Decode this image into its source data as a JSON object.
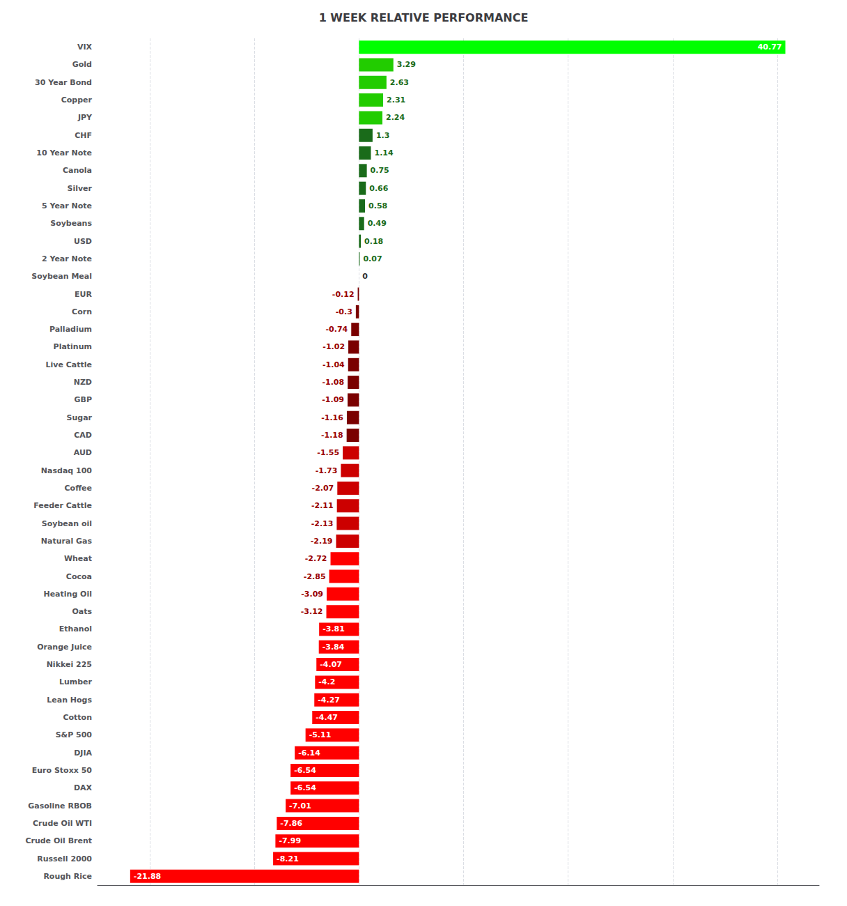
{
  "chart_data": {
    "type": "bar",
    "orientation": "horizontal",
    "title": "1 WEEK RELATIVE PERFORMANCE",
    "categories": [
      "VIX",
      "Gold",
      "30 Year Bond",
      "Copper",
      "JPY",
      "CHF",
      "10 Year Note",
      "Canola",
      "Silver",
      "5 Year Note",
      "Soybeans",
      "USD",
      "2 Year Note",
      "Soybean Meal",
      "EUR",
      "Corn",
      "Palladium",
      "Platinum",
      "Live Cattle",
      "NZD",
      "GBP",
      "Sugar",
      "CAD",
      "AUD",
      "Nasdaq 100",
      "Coffee",
      "Feeder Cattle",
      "Soybean oil",
      "Natural Gas",
      "Wheat",
      "Cocoa",
      "Heating Oil",
      "Oats",
      "Ethanol",
      "Orange Juice",
      "Nikkei 225",
      "Lumber",
      "Lean Hogs",
      "Cotton",
      "S&P 500",
      "DJIA",
      "Euro Stoxx 50",
      "DAX",
      "Gasoline RBOB",
      "Crude Oil WTI",
      "Crude Oil Brent",
      "Russell 2000",
      "Rough Rice"
    ],
    "values": [
      40.77,
      3.29,
      2.63,
      2.31,
      2.24,
      1.3,
      1.14,
      0.75,
      0.66,
      0.58,
      0.49,
      0.18,
      0.07,
      0.0,
      -0.12,
      -0.3,
      -0.74,
      -1.02,
      -1.04,
      -1.08,
      -1.09,
      -1.16,
      -1.18,
      -1.55,
      -1.73,
      -2.07,
      -2.11,
      -2.13,
      -2.19,
      -2.72,
      -2.85,
      -3.09,
      -3.12,
      -3.81,
      -3.84,
      -4.07,
      -4.2,
      -4.27,
      -4.47,
      -5.11,
      -6.14,
      -6.54,
      -6.54,
      -7.01,
      -7.86,
      -7.99,
      -8.21,
      -21.88
    ],
    "colors": [
      "#00ff00",
      "#22cc00",
      "#22cc00",
      "#22cc00",
      "#22cc00",
      "#1a6b1a",
      "#1a6b1a",
      "#1a6b1a",
      "#1a6b1a",
      "#1a6b1a",
      "#1a6b1a",
      "#1a6b1a",
      "#1a6b1a",
      "#888888",
      "#7a0000",
      "#7a0000",
      "#7a0000",
      "#7a0000",
      "#7a0000",
      "#7a0000",
      "#7a0000",
      "#7a0000",
      "#7a0000",
      "#cc0000",
      "#cc0000",
      "#cc0000",
      "#cc0000",
      "#cc0000",
      "#cc0000",
      "#ff0000",
      "#ff0000",
      "#ff0000",
      "#ff0000",
      "#ff0000",
      "#ff0000",
      "#ff0000",
      "#ff0000",
      "#ff0000",
      "#ff0000",
      "#ff0000",
      "#ff0000",
      "#ff0000",
      "#ff0000",
      "#ff0000",
      "#ff0000",
      "#ff0000",
      "#ff0000",
      "#ff0000"
    ],
    "xlim": [
      -25,
      44
    ],
    "xticks": [
      -20,
      -10,
      0,
      10,
      20,
      30,
      40
    ],
    "grid": true,
    "data_labels": true,
    "tick_labels": "y"
  }
}
